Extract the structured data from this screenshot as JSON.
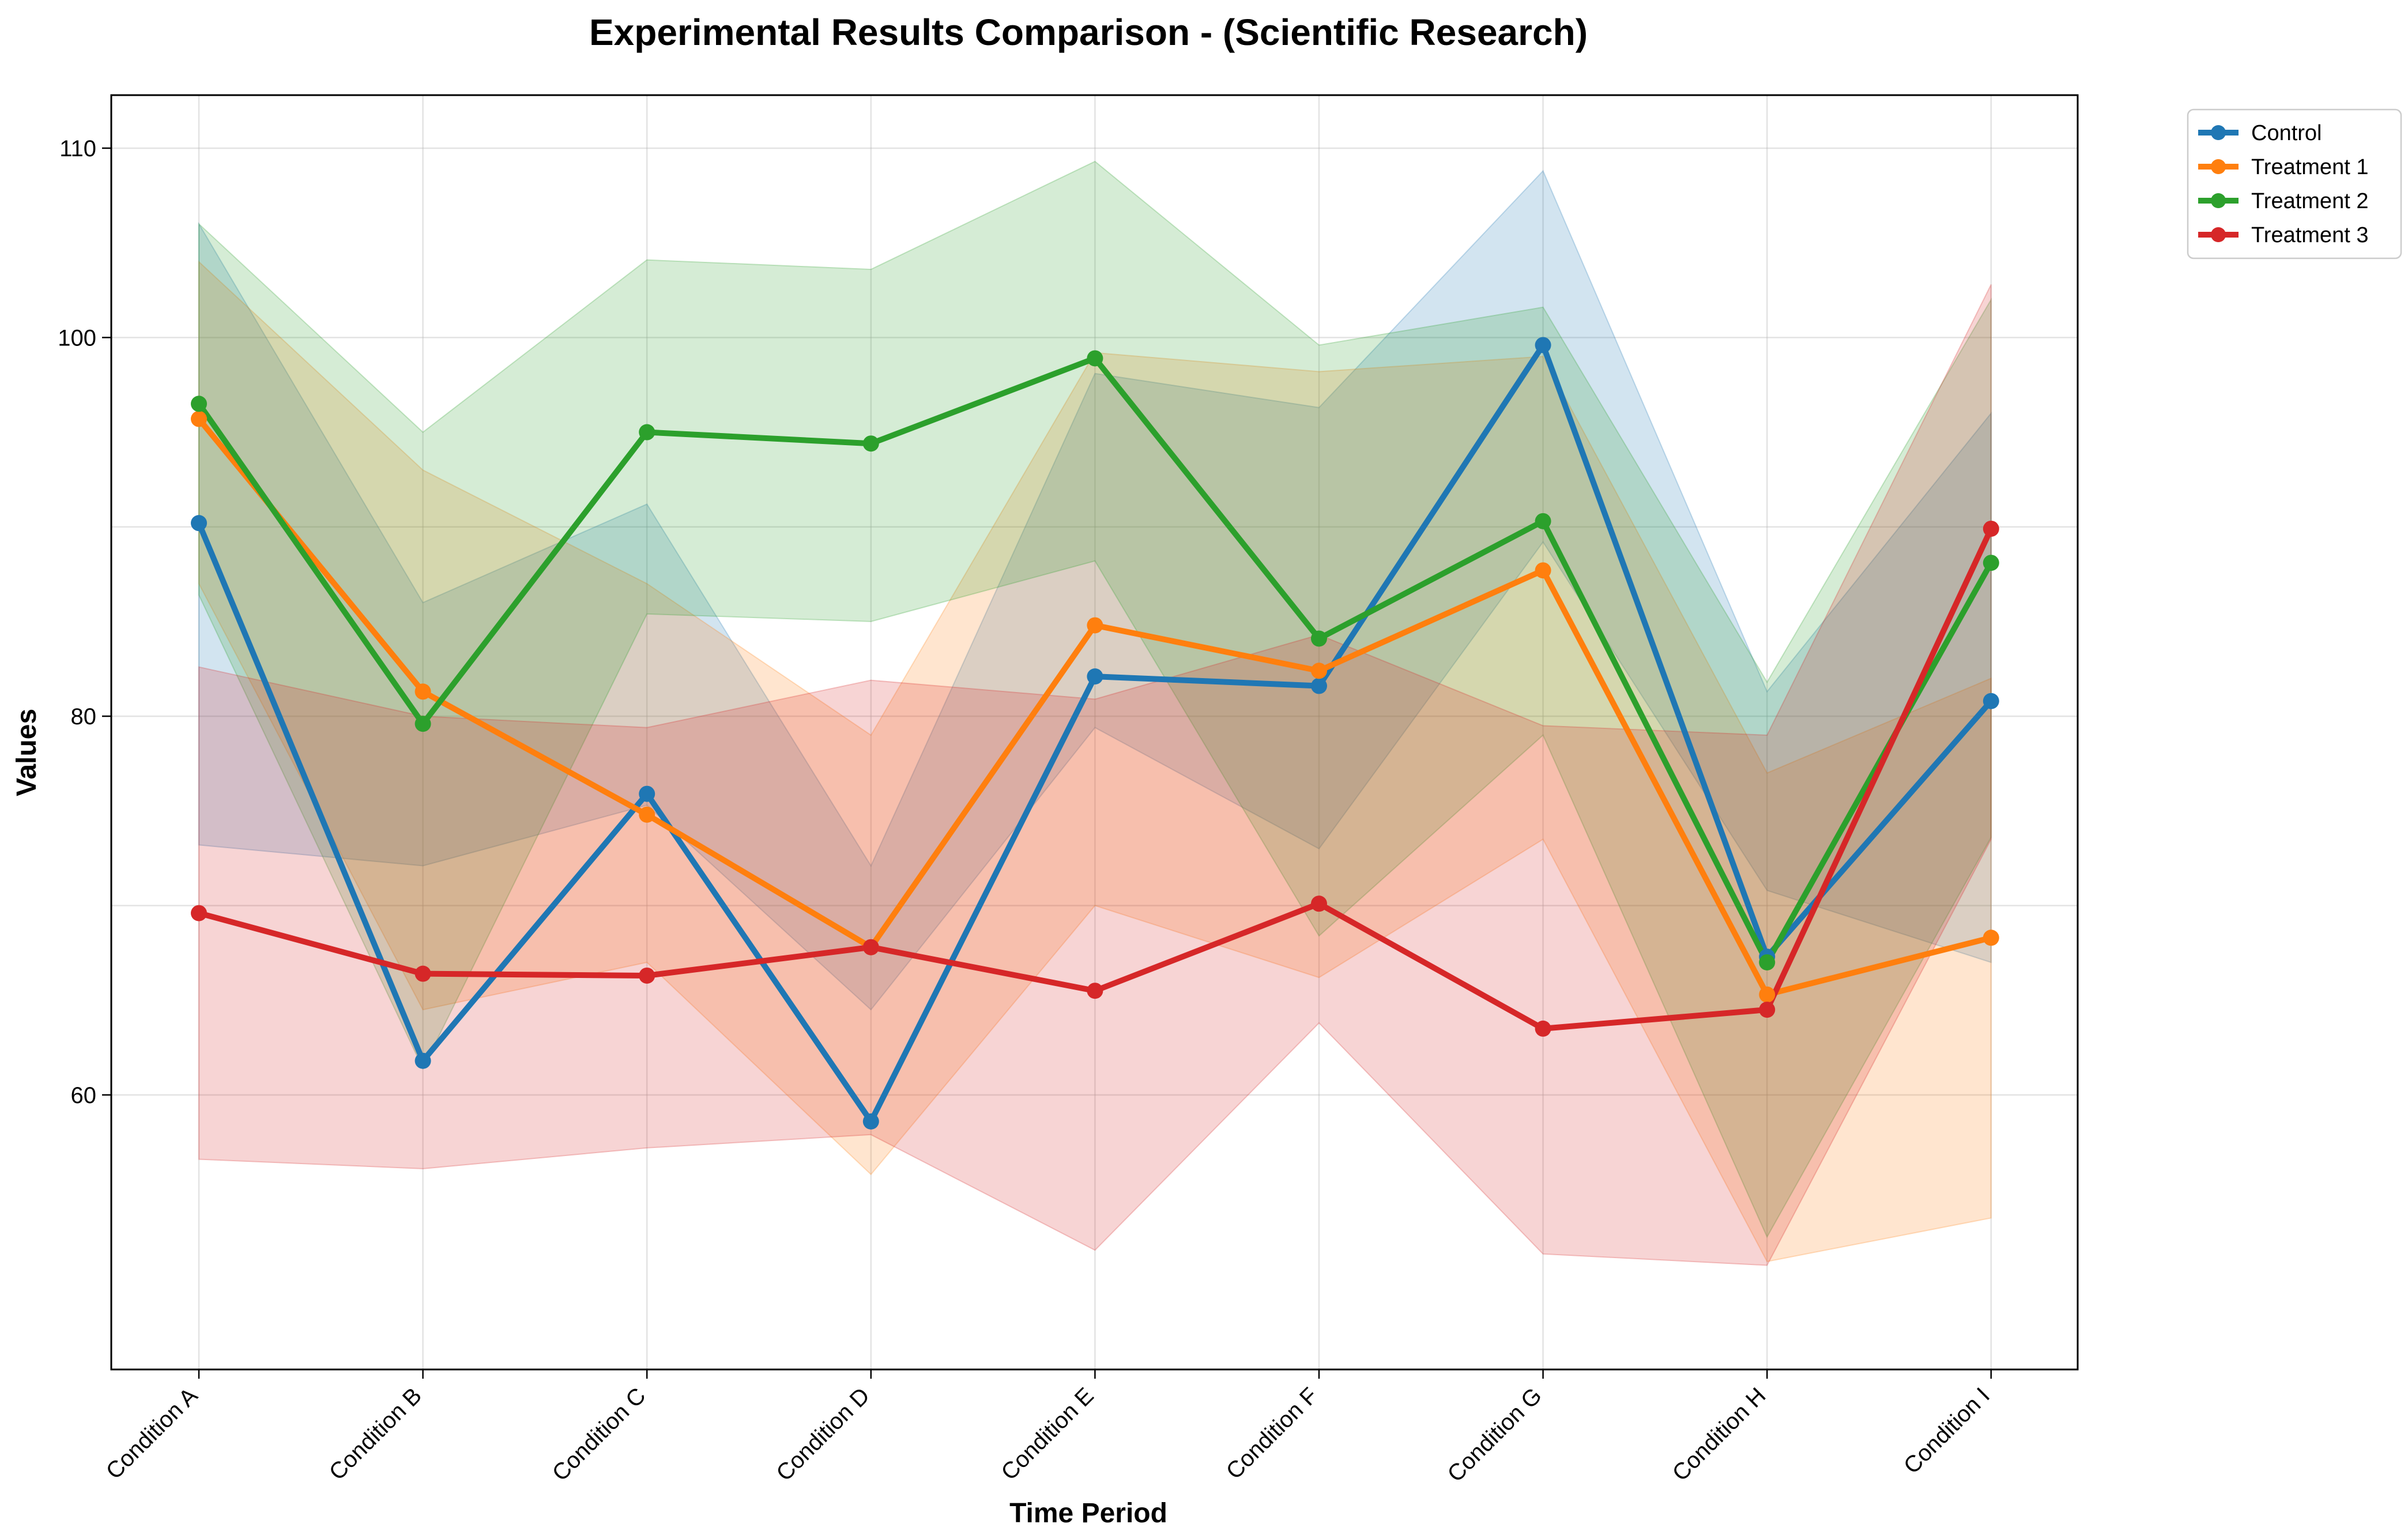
{
  "chart_data": {
    "type": "line",
    "title": "Experimental Results Comparison - (Scientific Research)",
    "xlabel": "Time Period",
    "ylabel": "Values",
    "categories": [
      "Condition A",
      "Condition B",
      "Condition C",
      "Condition D",
      "Condition E",
      "Condition F",
      "Condition G",
      "Condition H",
      "Condition I"
    ],
    "ylim": [
      45.5,
      112.8
    ],
    "yticks": [
      60,
      80,
      100,
      110
    ],
    "grid": true,
    "legend_position": "top-right",
    "series": [
      {
        "name": "Control",
        "color": "#1f77b4",
        "values": [
          90.2,
          61.8,
          75.9,
          58.6,
          82.1,
          81.6,
          99.6,
          67.3,
          80.8
        ],
        "band_upper": [
          106.0,
          86.0,
          91.2,
          72.1,
          98.1,
          96.3,
          108.8,
          81.3,
          96.0
        ],
        "band_lower": [
          73.2,
          72.1,
          75.3,
          64.5,
          79.4,
          73.0,
          89.2,
          70.8,
          67.0
        ]
      },
      {
        "name": "Treatment 1",
        "color": "#ff7f0e",
        "values": [
          95.7,
          81.3,
          74.8,
          67.8,
          84.8,
          82.4,
          87.7,
          65.3,
          68.3
        ],
        "band_upper": [
          104.0,
          93.0,
          87.0,
          79.0,
          99.2,
          98.2,
          99.0,
          77.0,
          82.0
        ],
        "band_lower": [
          87.0,
          64.5,
          67.0,
          55.8,
          70.0,
          66.2,
          73.5,
          51.2,
          53.5
        ]
      },
      {
        "name": "Treatment 2",
        "color": "#2ca02c",
        "values": [
          96.5,
          79.6,
          95.0,
          94.4,
          98.9,
          84.1,
          90.3,
          67.0,
          88.1
        ],
        "band_upper": [
          106.0,
          95.0,
          104.1,
          103.6,
          109.3,
          99.6,
          101.6,
          81.8,
          102.0
        ],
        "band_lower": [
          86.4,
          61.4,
          85.4,
          85.0,
          88.2,
          68.4,
          79.0,
          52.5,
          73.6
        ]
      },
      {
        "name": "Treatment 3",
        "color": "#d62728",
        "values": [
          69.6,
          66.4,
          66.3,
          67.8,
          65.5,
          70.1,
          63.5,
          64.5,
          89.9
        ],
        "band_upper": [
          82.6,
          80.0,
          79.4,
          81.9,
          80.9,
          84.3,
          79.5,
          79.0,
          102.8
        ],
        "band_lower": [
          56.6,
          56.1,
          57.2,
          57.9,
          51.8,
          63.8,
          51.6,
          51.0,
          73.5
        ]
      }
    ]
  }
}
